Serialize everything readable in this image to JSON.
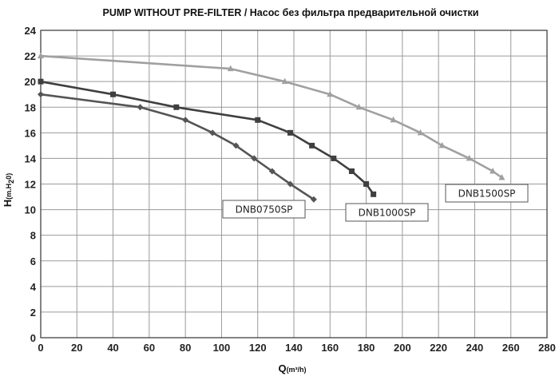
{
  "chart_data": {
    "type": "line",
    "title": "PUMP WITHOUT PRE-FILTER / Насос без фильтра предварительной  очистки",
    "xlabel": {
      "main": "Q",
      "sub": "(m³/h)"
    },
    "ylabel": {
      "main": "H",
      "sub": "(m.H",
      "sub2": "2",
      "sub3": "0)"
    },
    "xlim": [
      0,
      280
    ],
    "ylim": [
      0,
      24
    ],
    "x_ticks": [
      "0",
      "20",
      "40",
      "60",
      "80",
      "100",
      "120",
      "140",
      "160",
      "180",
      "200",
      "220",
      "240",
      "260",
      "280"
    ],
    "y_ticks": [
      "0",
      "2",
      "4",
      "6",
      "8",
      "10",
      "12",
      "14",
      "16",
      "18",
      "20",
      "22",
      "24"
    ],
    "grid": true,
    "series": [
      {
        "name": "DNB0750SP",
        "color": "#555555",
        "marker": "diamond",
        "points": [
          [
            0,
            19
          ],
          [
            55,
            18
          ],
          [
            80,
            17
          ],
          [
            95,
            16
          ],
          [
            108,
            15
          ],
          [
            118,
            14
          ],
          [
            128,
            13
          ],
          [
            138,
            12
          ],
          [
            151,
            10.8
          ]
        ]
      },
      {
        "name": "DNB1000SP",
        "color": "#3f3f3f",
        "marker": "square",
        "points": [
          [
            0,
            20
          ],
          [
            40,
            19
          ],
          [
            75,
            18
          ],
          [
            120,
            17
          ],
          [
            138,
            16
          ],
          [
            150,
            15
          ],
          [
            162,
            14
          ],
          [
            172,
            13
          ],
          [
            180,
            12
          ],
          [
            184,
            11.2
          ]
        ]
      },
      {
        "name": "DNB1500SP",
        "color": "#a0a0a0",
        "marker": "triangle",
        "points": [
          [
            0,
            22
          ],
          [
            105,
            21
          ],
          [
            135,
            20
          ],
          [
            160,
            19
          ],
          [
            176,
            18
          ],
          [
            195,
            17
          ],
          [
            210,
            16
          ],
          [
            222,
            15
          ],
          [
            237,
            14
          ],
          [
            250,
            13
          ],
          [
            255,
            12.5
          ]
        ]
      }
    ]
  }
}
